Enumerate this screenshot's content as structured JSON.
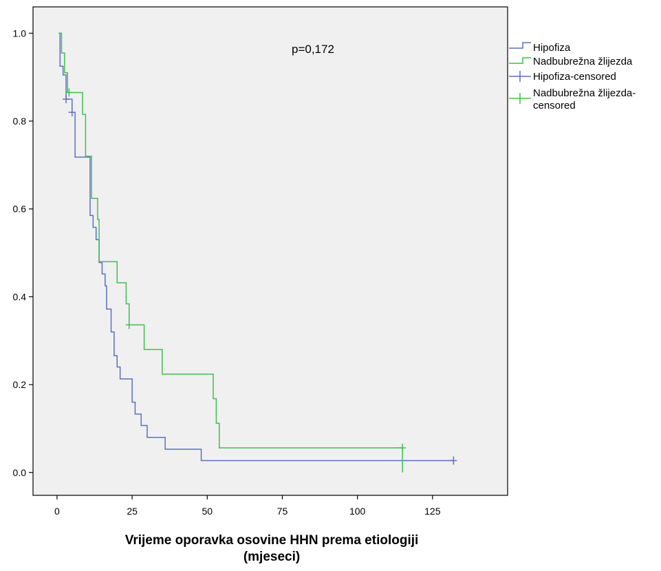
{
  "chart_data": {
    "type": "line",
    "subtype": "kaplan-meier step",
    "title": "",
    "xlabel_line1": "Vrijeme oporavka osovine HHN prema etiologiji",
    "xlabel_line2": "(mjeseci)",
    "ylabel": "",
    "annotation": "p=0,172",
    "xlim": [
      -8,
      150
    ],
    "ylim": [
      -0.052,
      1.06
    ],
    "x_ticks": [
      0,
      25,
      50,
      75,
      100,
      125
    ],
    "x_tick_labels": [
      "0",
      "25",
      "50",
      "75",
      "100",
      "125"
    ],
    "y_ticks": [
      0.0,
      0.2,
      0.4,
      0.6,
      0.8,
      1.0
    ],
    "y_tick_labels": [
      "0.0",
      "0.2",
      "0.4",
      "0.6",
      "0.8",
      "1.0"
    ],
    "grid": false,
    "background": "#f0f0f0",
    "legend_position": "right",
    "legend": [
      {
        "label": "Hipofiza",
        "kind": "step",
        "color": "#5a6fc4"
      },
      {
        "label": "Nadbubrežna žlijezda",
        "kind": "step",
        "color": "#3dbf4f"
      },
      {
        "label": "Hipofiza-censored",
        "kind": "censor",
        "color": "#5a6fc4"
      },
      {
        "label_line1": "Nadbubrežna žlijezda-",
        "label_line2": "censored",
        "kind": "censor",
        "color": "#3dbf4f"
      }
    ],
    "series": [
      {
        "name": "Hipofiza",
        "color": "#5a6fc4",
        "steps": [
          [
            0.5,
            1.0
          ],
          [
            1.0,
            0.925
          ],
          [
            2.0,
            0.905
          ],
          [
            3.0,
            0.85
          ],
          [
            5.0,
            0.82
          ],
          [
            6.0,
            0.718
          ],
          [
            11.0,
            0.585
          ],
          [
            12.0,
            0.558
          ],
          [
            13.0,
            0.53
          ],
          [
            14.0,
            0.478
          ],
          [
            15.0,
            0.452
          ],
          [
            16.0,
            0.425
          ],
          [
            16.5,
            0.372
          ],
          [
            18.0,
            0.32
          ],
          [
            19.0,
            0.266
          ],
          [
            20.0,
            0.24
          ],
          [
            21.0,
            0.213
          ],
          [
            25.0,
            0.16
          ],
          [
            26.0,
            0.133
          ],
          [
            28.0,
            0.107
          ],
          [
            30.0,
            0.08
          ],
          [
            36.0,
            0.053
          ],
          [
            48.0,
            0.027
          ],
          [
            132.0,
            0.027
          ]
        ],
        "censored": [
          [
            3.0,
            0.85
          ],
          [
            5.0,
            0.82
          ],
          [
            132.0,
            0.027
          ]
        ]
      },
      {
        "name": "Nadbubrežna žlijezda",
        "color": "#3dbf4f",
        "steps": [
          [
            0.5,
            1.0
          ],
          [
            1.5,
            0.955
          ],
          [
            2.5,
            0.91
          ],
          [
            3.5,
            0.865
          ],
          [
            8.5,
            0.815
          ],
          [
            9.5,
            0.72
          ],
          [
            11.5,
            0.624
          ],
          [
            13.5,
            0.576
          ],
          [
            14.0,
            0.48
          ],
          [
            20.0,
            0.432
          ],
          [
            23.0,
            0.384
          ],
          [
            24.0,
            0.336
          ],
          [
            29.0,
            0.28
          ],
          [
            35.0,
            0.224
          ],
          [
            52.0,
            0.168
          ],
          [
            53.0,
            0.112
          ],
          [
            54.0,
            0.056
          ],
          [
            115.0,
            0.0
          ]
        ],
        "censored": [
          [
            4.0,
            0.865
          ],
          [
            24.0,
            0.336
          ],
          [
            115.0,
            0.056
          ]
        ]
      }
    ]
  }
}
